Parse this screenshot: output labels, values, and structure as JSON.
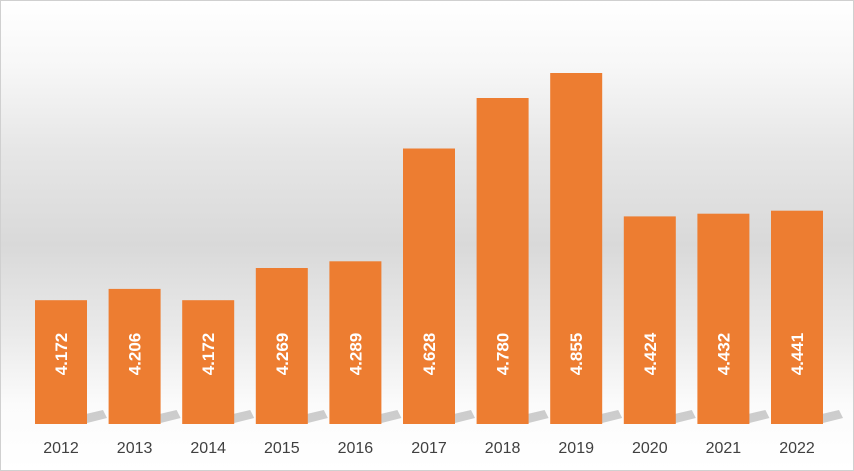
{
  "chart_data": {
    "type": "bar",
    "categories": [
      "2012",
      "2013",
      "2014",
      "2015",
      "2016",
      "2017",
      "2018",
      "2019",
      "2020",
      "2021",
      "2022"
    ],
    "values": [
      4.172,
      4.206,
      4.172,
      4.269,
      4.289,
      4.628,
      4.78,
      4.855,
      4.424,
      4.432,
      4.441
    ],
    "data_labels": [
      "4.172",
      "4.206",
      "4.172",
      "4.269",
      "4.289",
      "4.628",
      "4.780",
      "4.855",
      "4.424",
      "4.432",
      "4.441"
    ],
    "title": "",
    "xlabel": "",
    "ylabel": "",
    "ylim": [
      3.8,
      4.95
    ],
    "grid": false,
    "legend": "none",
    "data_label_orientation": "vertical",
    "colors": {
      "bar": "#ed7d31",
      "label": "#ffffff",
      "tick": "#404040"
    }
  }
}
